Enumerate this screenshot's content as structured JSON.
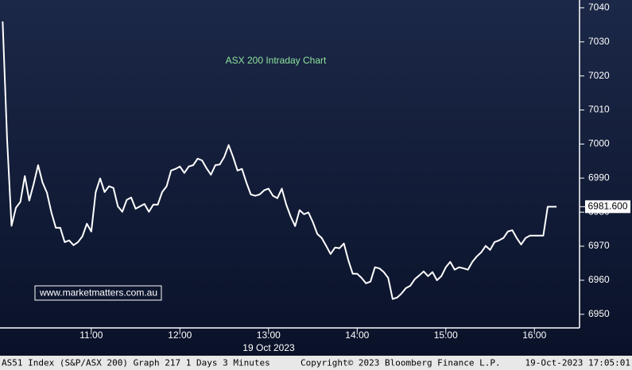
{
  "chart_data": {
    "type": "line",
    "title": "ASX 200 Intraday Chart",
    "watermark": "www.marketmatters.com.au",
    "x_date_label": "19 Oct 2023",
    "footer": {
      "left": "AS51 Index (S&P/ASX 200) Graph 217 1 Days 3 Minutes",
      "center": "Copyright© 2023 Bloomberg Finance L.P.",
      "right": "19-Oct-2023 17:05:01"
    },
    "xlim": [
      9.97,
      16.5
    ],
    "ylim": [
      6946,
      7042.3
    ],
    "xticks": [
      {
        "value": 11,
        "label": "11:00"
      },
      {
        "value": 12,
        "label": "12:00"
      },
      {
        "value": 13,
        "label": "13:00"
      },
      {
        "value": 14,
        "label": "14:00"
      },
      {
        "value": 15,
        "label": "15:00"
      },
      {
        "value": 16,
        "label": "16:00"
      }
    ],
    "yticks": [
      6950,
      6960,
      6970,
      6980,
      6990,
      7000,
      7010,
      7020,
      7030,
      7040
    ],
    "grid": false,
    "x": [
      10,
      10.05,
      10.1,
      10.15,
      10.2,
      10.25,
      10.3,
      10.35,
      10.4,
      10.45,
      10.5,
      10.55,
      10.6,
      10.65,
      10.7,
      10.75,
      10.8,
      10.85,
      10.9,
      10.95,
      11,
      11.05,
      11.1,
      11.15,
      11.2,
      11.25,
      11.3,
      11.35,
      11.4,
      11.45,
      11.5,
      11.55,
      11.6,
      11.65,
      11.7,
      11.75,
      11.8,
      11.85,
      11.9,
      11.95,
      12,
      12.05,
      12.1,
      12.15,
      12.2,
      12.25,
      12.3,
      12.35,
      12.4,
      12.45,
      12.5,
      12.55,
      12.6,
      12.65,
      12.7,
      12.75,
      12.8,
      12.85,
      12.9,
      12.95,
      13,
      13.05,
      13.1,
      13.15,
      13.2,
      13.25,
      13.3,
      13.35,
      13.4,
      13.45,
      13.5,
      13.55,
      13.6,
      13.65,
      13.7,
      13.75,
      13.8,
      13.85,
      13.9,
      13.95,
      14,
      14.05,
      14.1,
      14.15,
      14.2,
      14.25,
      14.3,
      14.35,
      14.4,
      14.45,
      14.5,
      14.55,
      14.6,
      14.65,
      14.7,
      14.75,
      14.8,
      14.85,
      14.9,
      14.95,
      15,
      15.05,
      15.1,
      15.15,
      15.2,
      15.25,
      15.3,
      15.35,
      15.4,
      15.45,
      15.5,
      15.55,
      15.6,
      15.65,
      15.7,
      15.75,
      15.8,
      15.85,
      15.9,
      15.95,
      16,
      16.05,
      16.1,
      16.15,
      16.2,
      16.25
    ],
    "series": [
      {
        "name": "AS51 Index",
        "color": "#ffffff",
        "values": [
          7036,
          7001.5,
          6976,
          6981.3,
          6983,
          6990.6,
          6983.4,
          6988.3,
          6993.8,
          6988.7,
          6985.7,
          6979.9,
          6975.4,
          6975.4,
          6971.2,
          6971.7,
          6970.3,
          6971.2,
          6972.9,
          6976.6,
          6974.3,
          6985.9,
          6989.9,
          6985.9,
          6987.6,
          6987.1,
          6981.7,
          6980.1,
          6983.6,
          6984.3,
          6981,
          6981.7,
          6982.4,
          6980.1,
          6982.2,
          6982.2,
          6985.9,
          6987.6,
          6992.2,
          6992.7,
          6993.4,
          6991.5,
          6993.4,
          6993.8,
          6995.7,
          6995.2,
          6992.9,
          6991,
          6993.8,
          6994,
          6996.2,
          6999.7,
          6996.2,
          6992.2,
          6992.7,
          6988.7,
          6985.2,
          6984.8,
          6985.2,
          6986.4,
          6986.9,
          6984.8,
          6984.1,
          6986.9,
          6982.2,
          6978.7,
          6975.9,
          6980.6,
          6979.4,
          6979.9,
          6977.1,
          6973.6,
          6972.4,
          6970.1,
          6967.7,
          6969.6,
          6969.4,
          6970.8,
          6965.9,
          6961.9,
          6961.9,
          6960.7,
          6959.1,
          6959.6,
          6963.8,
          6963.5,
          6962.4,
          6960.7,
          6954.5,
          6954.9,
          6956.1,
          6957.7,
          6958.4,
          6960.3,
          6961.4,
          6962.6,
          6961.2,
          6962.4,
          6960,
          6961.2,
          6963.8,
          6965.4,
          6963.1,
          6963.8,
          6963.5,
          6963.1,
          6965.4,
          6967,
          6968.2,
          6970.1,
          6968.9,
          6971.2,
          6971.7,
          6972.4,
          6974.3,
          6974.7,
          6972.4,
          6970.5,
          6972.4,
          6973.1,
          6973.1,
          6973.1,
          6973.1,
          6981.6,
          6981.6,
          6981.6
        ],
        "value_labels": [
          null,
          null,
          null,
          null,
          null,
          null,
          null,
          null,
          null,
          null,
          null,
          null,
          null,
          null,
          null,
          null,
          null,
          null,
          null,
          null,
          null,
          null,
          null,
          null,
          null,
          null,
          null,
          null,
          null,
          null,
          null,
          null,
          null,
          null,
          null,
          null,
          null,
          null,
          null,
          null,
          null,
          null,
          null,
          null,
          null,
          null,
          null,
          null,
          null,
          null,
          null,
          null,
          null,
          null,
          null,
          null,
          null,
          null,
          null,
          null,
          null,
          null,
          null,
          null,
          null,
          null,
          null,
          null,
          null,
          null,
          null,
          null,
          null,
          null,
          null,
          null,
          null,
          null,
          null,
          null,
          null,
          null,
          null,
          null,
          null,
          null,
          null,
          null,
          null,
          null,
          null,
          null,
          null,
          null,
          null,
          null,
          null,
          null,
          null,
          null,
          null,
          null,
          null,
          null,
          null,
          null,
          null,
          null,
          null,
          null,
          null,
          null,
          null,
          null,
          null,
          null,
          null,
          null,
          null,
          null,
          null,
          null,
          null,
          null,
          null,
          "6981.600"
        ]
      }
    ]
  }
}
